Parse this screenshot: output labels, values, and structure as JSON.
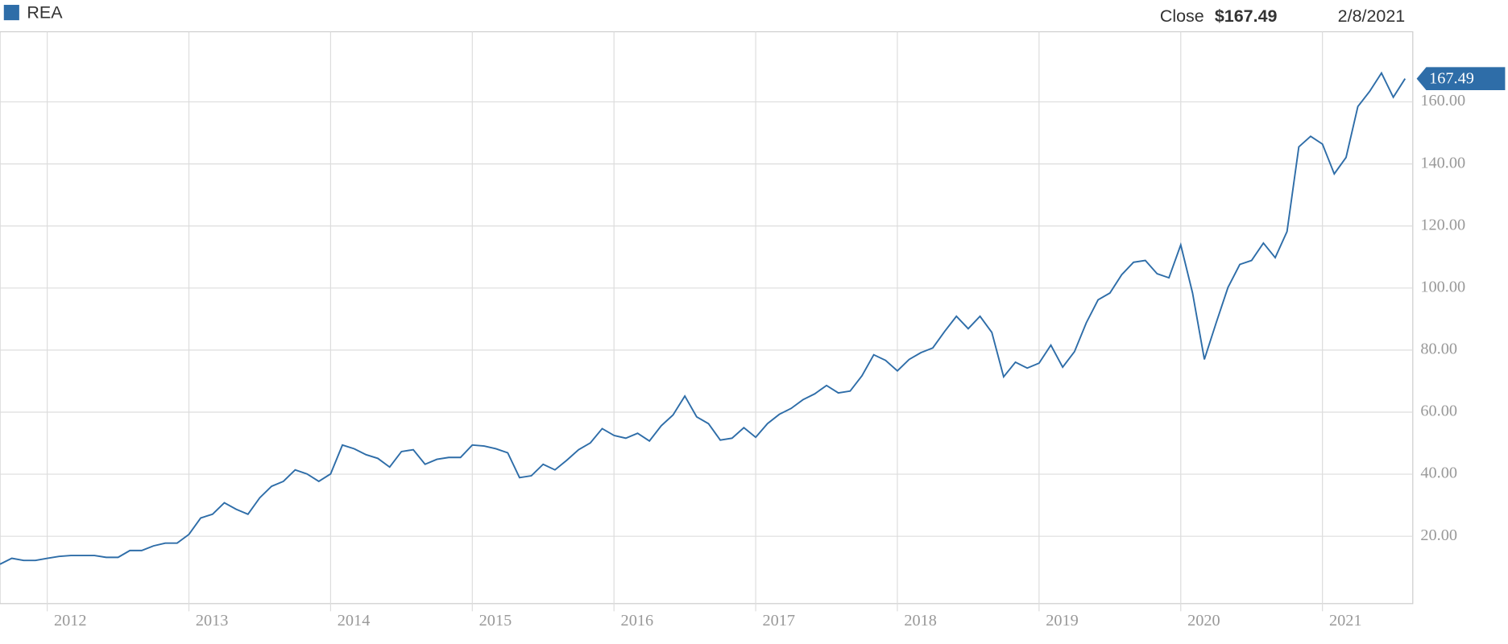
{
  "chart_data": {
    "type": "line",
    "legend_label": "REA",
    "close_label": "Close",
    "close_value": "$167.49",
    "date": "2/8/2021",
    "categories": [
      null,
      null,
      null,
      null,
      "2012",
      null,
      null,
      null,
      null,
      null,
      null,
      null,
      null,
      null,
      null,
      null,
      "2013",
      null,
      null,
      null,
      null,
      null,
      null,
      null,
      null,
      null,
      null,
      null,
      "2014",
      null,
      null,
      null,
      null,
      null,
      null,
      null,
      null,
      null,
      null,
      null,
      "2015",
      null,
      null,
      null,
      null,
      null,
      null,
      null,
      null,
      null,
      null,
      null,
      "2016",
      null,
      null,
      null,
      null,
      null,
      null,
      null,
      null,
      null,
      null,
      null,
      "2017",
      null,
      null,
      null,
      null,
      null,
      null,
      null,
      null,
      null,
      null,
      null,
      "2018",
      null,
      null,
      null,
      null,
      null,
      null,
      null,
      null,
      null,
      null,
      null,
      "2019",
      null,
      null,
      null,
      null,
      null,
      null,
      null,
      null,
      null,
      null,
      null,
      "2020",
      null,
      null,
      null,
      null,
      null,
      null,
      null,
      null,
      null,
      null,
      null,
      "2021",
      null,
      null,
      null,
      null,
      null,
      null,
      null
    ],
    "series": [
      {
        "name": "REA",
        "color": "#2e6da8",
        "values": [
          11,
          12.9,
          12.2,
          12.2,
          12.9,
          13.5,
          13.8,
          13.8,
          13.8,
          13.2,
          13.2,
          15.4,
          15.4,
          16.9,
          17.8,
          17.8,
          20.6,
          25.9,
          27.1,
          30.8,
          28.7,
          27.1,
          32.4,
          36.1,
          37.7,
          41.4,
          40.1,
          37.7,
          40.1,
          49.4,
          48.2,
          46.3,
          45.1,
          42.3,
          47.3,
          47.9,
          43.2,
          44.8,
          45.4,
          45.4,
          49.4,
          49.1,
          48.2,
          46.9,
          38.9,
          39.5,
          43.2,
          41.4,
          44.5,
          47.9,
          50.1,
          54.7,
          52.5,
          51.6,
          53.2,
          50.7,
          55.6,
          59.1,
          65.2,
          58.5,
          56.3,
          51,
          51.6,
          55,
          51.9,
          56.3,
          59.3,
          61.2,
          64,
          65.9,
          68.6,
          66.2,
          66.8,
          71.7,
          78.5,
          76.7,
          73.3,
          77,
          79.2,
          80.7,
          86,
          90.9,
          86.9,
          90.9,
          85.7,
          71.4,
          76.1,
          74.2,
          75.8,
          81.6,
          74.5,
          79.5,
          88.8,
          96.2,
          98.4,
          104.3,
          108.3,
          108.9,
          104.6,
          103.3,
          113.9,
          98.4,
          77,
          88.8,
          100.2,
          107.6,
          108.9,
          114.5,
          109.8,
          118.2,
          145.5,
          148.9,
          146.4,
          136.8,
          142.1,
          158.5,
          163.4,
          169.3,
          161.5,
          167.49
        ]
      }
    ],
    "ylim": [
      -1.7,
      182.6
    ],
    "yticks": [
      {
        "value": 20,
        "label": "20.00"
      },
      {
        "value": 40,
        "label": "40.00"
      },
      {
        "value": 60,
        "label": "60.00"
      },
      {
        "value": 80,
        "label": "80.00"
      },
      {
        "value": 100,
        "label": "100.00"
      },
      {
        "value": 120,
        "label": "120.00"
      },
      {
        "value": 140,
        "label": "140.00"
      },
      {
        "value": 160,
        "label": "160.00"
      }
    ],
    "grid": true
  }
}
